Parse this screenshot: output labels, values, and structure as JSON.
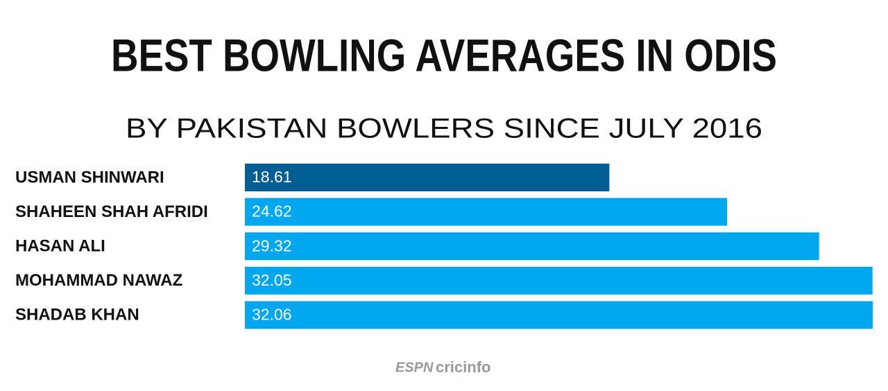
{
  "chart_data": {
    "type": "hbar",
    "title": "BEST BOWLING AVERAGES IN ODIS",
    "subtitle": "BY PAKISTAN BOWLERS SINCE JULY 2016",
    "categories": [
      "USMAN SHINWARI",
      "SHAHEEN SHAH AFRIDI",
      "HASAN ALI",
      "MOHAMMAD NAWAZ",
      "SHADAB KHAN"
    ],
    "values": [
      18.61,
      24.62,
      29.32,
      32.05,
      32.06
    ],
    "colors": [
      "#005e93",
      "#00a6ee",
      "#00a6ee",
      "#00a6ee",
      "#00a6ee"
    ],
    "value_label_color": "#ffffff",
    "logo_brand": "ESPN",
    "logo_site": "cricinfo"
  }
}
